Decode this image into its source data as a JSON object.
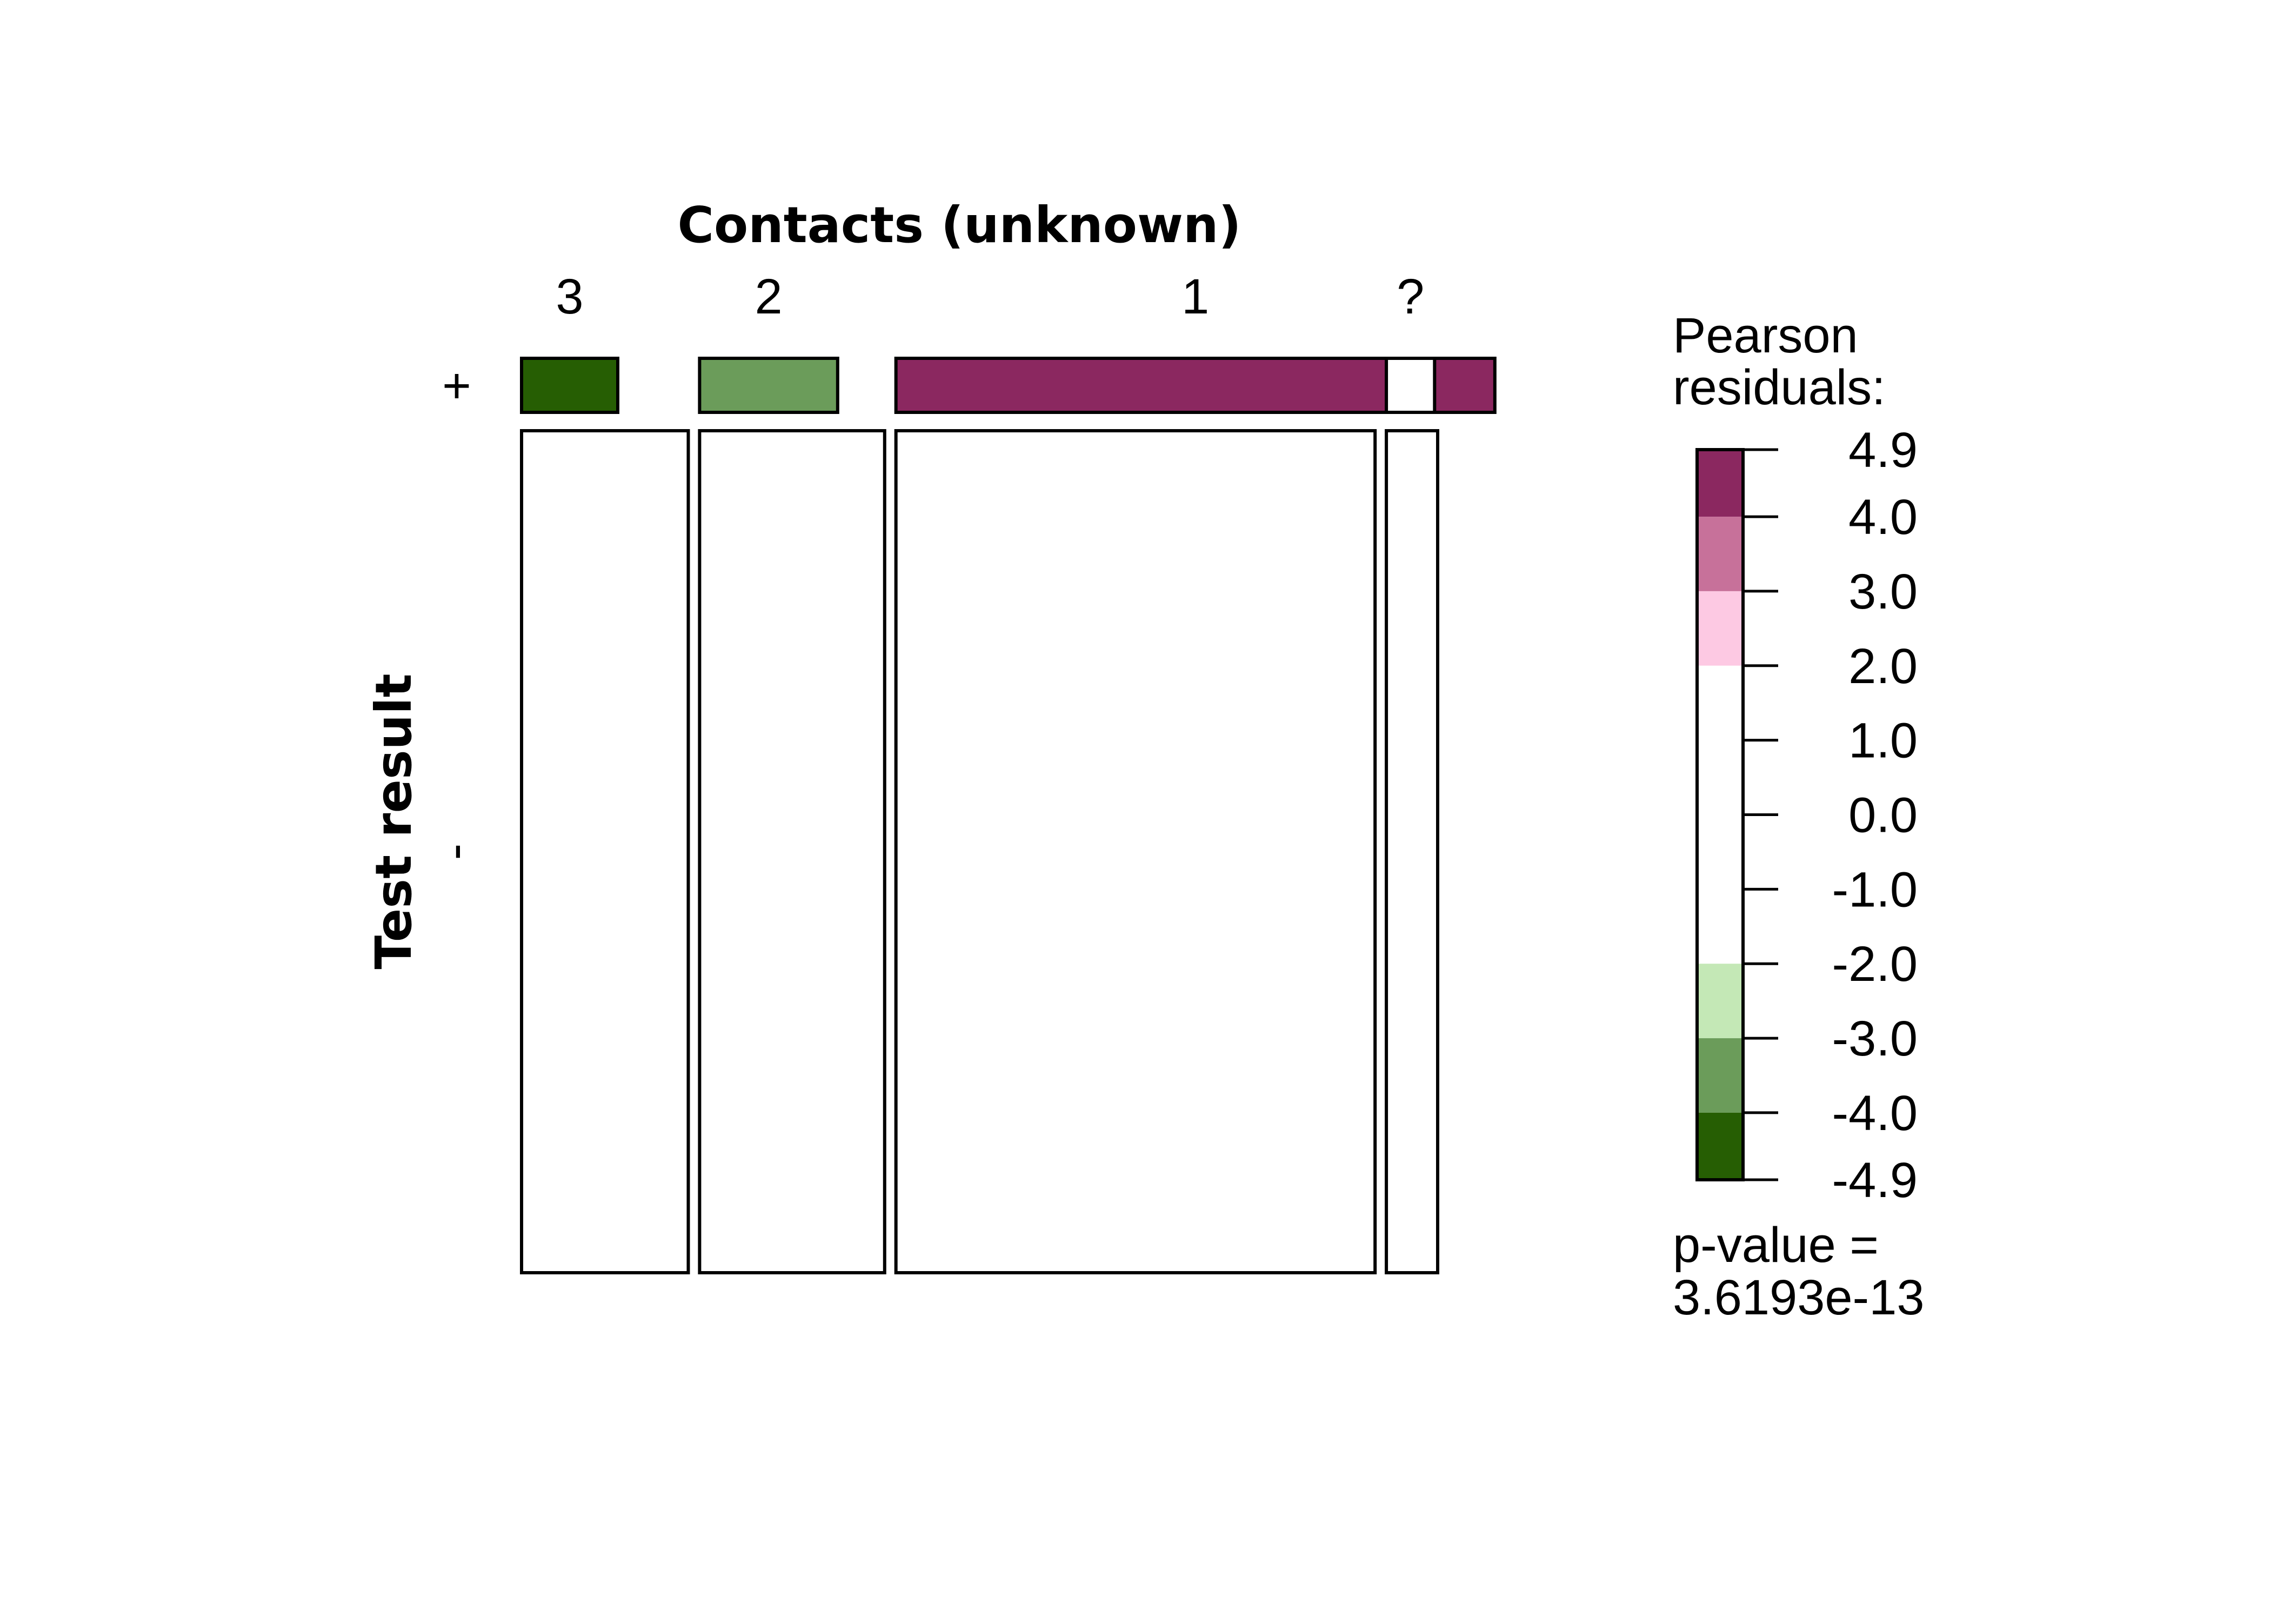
{
  "chart_data": {
    "type": "mosaic",
    "title": "",
    "x_variable": "Contacts (unknown)",
    "y_variable": "Test result",
    "x_categories": [
      "3",
      "2",
      "1",
      "?"
    ],
    "y_categories": [
      "+",
      "-"
    ],
    "column_proportions": [
      0.182,
      0.202,
      0.523,
      0.056
    ],
    "row_positive_proportions": [
      0.06,
      0.06,
      0.06,
      0.06
    ],
    "positive_width_fractions": [
      0.577,
      0.746,
      1.25,
      0.94
    ],
    "residual_levels": [
      "dark-green",
      "mid-green",
      "purple",
      "white"
    ],
    "legend": {
      "title_line1": "Pearson",
      "title_line2": "residuals:",
      "ticks": [
        "4.9",
        "4.0",
        "3.0",
        "2.0",
        "1.0",
        "0.0",
        "-1.0",
        "-2.0",
        "-3.0",
        "-4.0",
        "-4.9"
      ],
      "tick_values": [
        4.9,
        4.0,
        3.0,
        2.0,
        1.0,
        0.0,
        -1.0,
        -2.0,
        -3.0,
        -4.0,
        -4.9
      ],
      "bands": [
        {
          "from": 4.0,
          "to": 4.9,
          "color": "#8b2860"
        },
        {
          "from": 3.0,
          "to": 4.0,
          "color": "#c7719a"
        },
        {
          "from": 2.0,
          "to": 3.0,
          "color": "#fdc9e3"
        },
        {
          "from": -2.0,
          "to": 2.0,
          "color": "#ffffff"
        },
        {
          "from": -3.0,
          "to": -2.0,
          "color": "#c4e8b6"
        },
        {
          "from": -4.0,
          "to": -3.0,
          "color": "#6b9c5a"
        },
        {
          "from": -4.9,
          "to": -4.0,
          "color": "#265e03"
        }
      ],
      "pvalue_line1": "p-value =",
      "pvalue_line2": "3.6193e-13"
    },
    "colors": {
      "dark-green": "#265e03",
      "mid-green": "#6b9c5a",
      "purple": "#8b2860",
      "white": "#ffffff"
    }
  }
}
